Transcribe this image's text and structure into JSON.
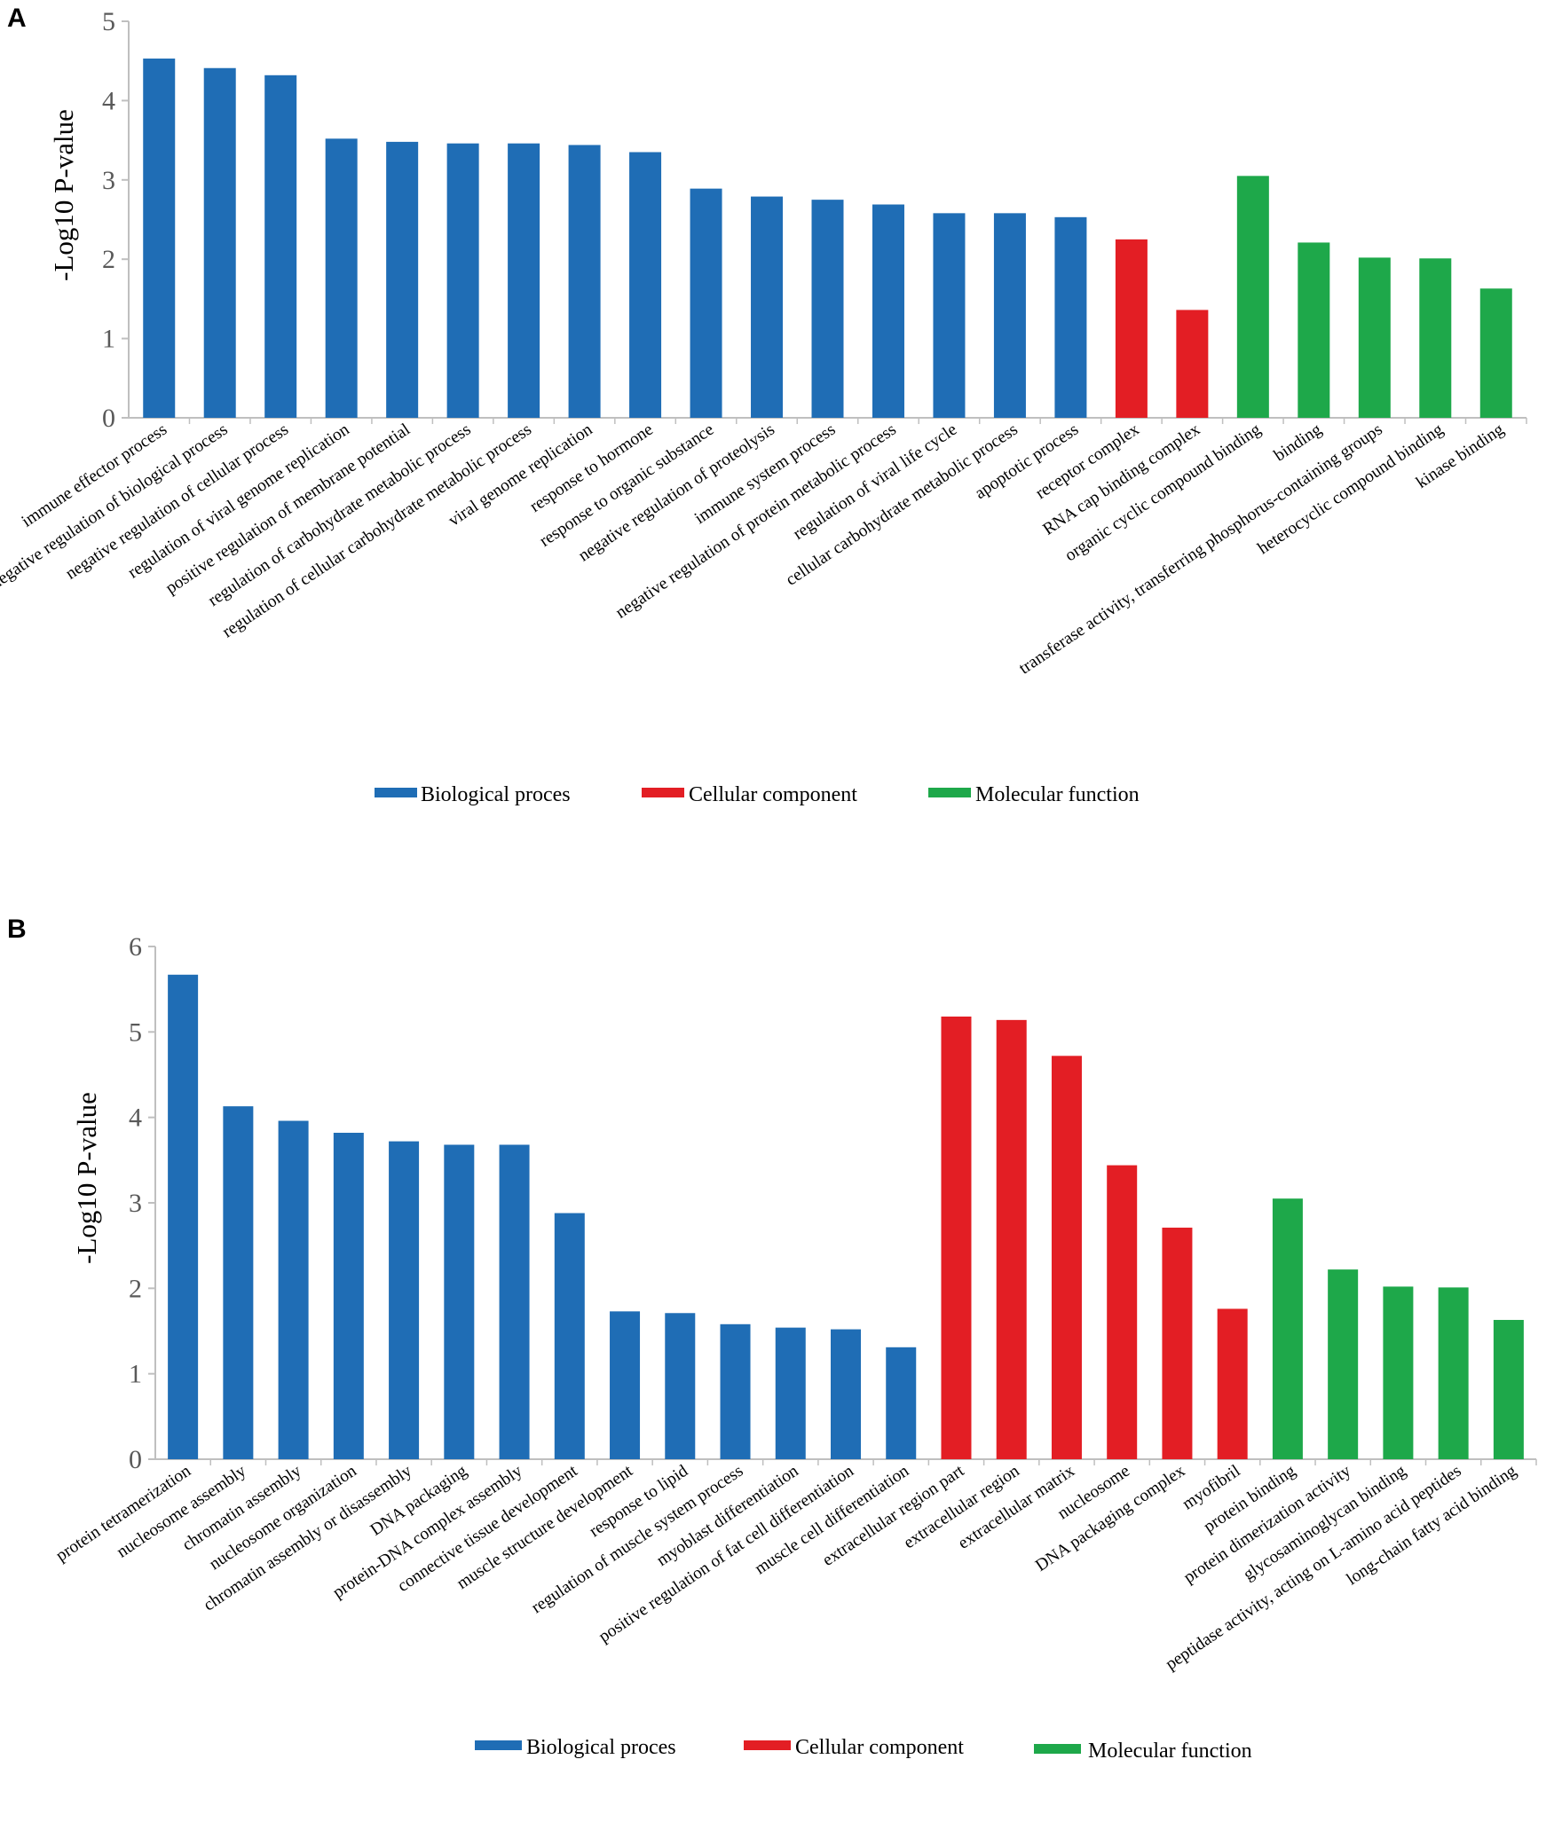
{
  "legend": {
    "bp": "Biological proces",
    "cc": "Cellular component",
    "mf": "Molecular function"
  },
  "colors": {
    "bp": "#1f6db5",
    "cc": "#e31e24",
    "mf": "#1ea84a",
    "axis": "#bfbfbf",
    "tick_text": "#595959"
  },
  "chart_data": [
    {
      "type": "bar",
      "panel": "A",
      "title": "",
      "xlabel": "",
      "ylabel": "-Log10 P-value",
      "ylim": [
        0,
        5
      ],
      "yticks": [
        "0",
        "1",
        "2",
        "3",
        "4",
        "5"
      ],
      "grid": false,
      "legend_position": "bottom",
      "categories": [
        "immune effector process",
        "negative regulation of biological process",
        "negative regulation of cellular process",
        "regulation of viral genome replication",
        "positive regulation of membrane potential",
        "regulation of carbohydrate metabolic process",
        "regulation of cellular carbohydrate metabolic process",
        "viral genome replication",
        "response to hormone",
        "response to organic substance",
        "negative regulation of proteolysis",
        "immune system process",
        "negative regulation of protein metabolic process",
        "regulation of viral life cycle",
        "cellular carbohydrate metabolic process",
        "apoptotic process",
        "receptor complex",
        "RNA cap binding complex",
        "organic cyclic compound binding",
        "binding",
        "transferase activity, transferring phosphorus-containing groups",
        "heterocyclic compound binding",
        "kinase binding"
      ],
      "values": [
        4.53,
        4.41,
        4.32,
        3.52,
        3.48,
        3.46,
        3.46,
        3.44,
        3.35,
        2.89,
        2.79,
        2.75,
        2.69,
        2.58,
        2.58,
        2.53,
        2.25,
        1.36,
        3.05,
        2.21,
        2.02,
        2.01,
        1.63
      ],
      "groups": [
        "bp",
        "bp",
        "bp",
        "bp",
        "bp",
        "bp",
        "bp",
        "bp",
        "bp",
        "bp",
        "bp",
        "bp",
        "bp",
        "bp",
        "bp",
        "bp",
        "cc",
        "cc",
        "mf",
        "mf",
        "mf",
        "mf",
        "mf"
      ]
    },
    {
      "type": "bar",
      "panel": "B",
      "title": "",
      "xlabel": "",
      "ylabel": "-Log10 P-value",
      "ylim": [
        0,
        6
      ],
      "yticks": [
        "0",
        "1",
        "2",
        "3",
        "4",
        "5",
        "6"
      ],
      "grid": false,
      "legend_position": "bottom",
      "categories": [
        "protein tetramerization",
        "nucleosome assembly",
        "chromatin assembly",
        "nucleosome organization",
        "chromatin assembly or disassembly",
        "DNA packaging",
        "protein-DNA complex assembly",
        "connective tissue development",
        "muscle structure development",
        "response to lipid",
        "regulation of muscle system process",
        "myoblast differentiation",
        "positive regulation of fat cell differentiation",
        "muscle cell differentiation",
        "extracellular region part",
        "extracellular region",
        "extracellular matrix",
        "nucleosome",
        "DNA packaging complex",
        "myofibril",
        "protein binding",
        "protein dimerization activity",
        "glycosaminoglycan binding",
        "peptidase activity, acting on L-amino acid peptides",
        "long-chain fatty acid binding"
      ],
      "values": [
        5.67,
        4.13,
        3.96,
        3.82,
        3.72,
        3.68,
        3.68,
        2.88,
        1.73,
        1.71,
        1.58,
        1.54,
        1.52,
        1.31,
        5.18,
        5.14,
        4.72,
        3.44,
        2.71,
        1.76,
        3.05,
        2.22,
        2.02,
        2.01,
        1.63
      ],
      "groups": [
        "bp",
        "bp",
        "bp",
        "bp",
        "bp",
        "bp",
        "bp",
        "bp",
        "bp",
        "bp",
        "bp",
        "bp",
        "bp",
        "bp",
        "cc",
        "cc",
        "cc",
        "cc",
        "cc",
        "cc",
        "mf",
        "mf",
        "mf",
        "mf",
        "mf"
      ]
    }
  ]
}
